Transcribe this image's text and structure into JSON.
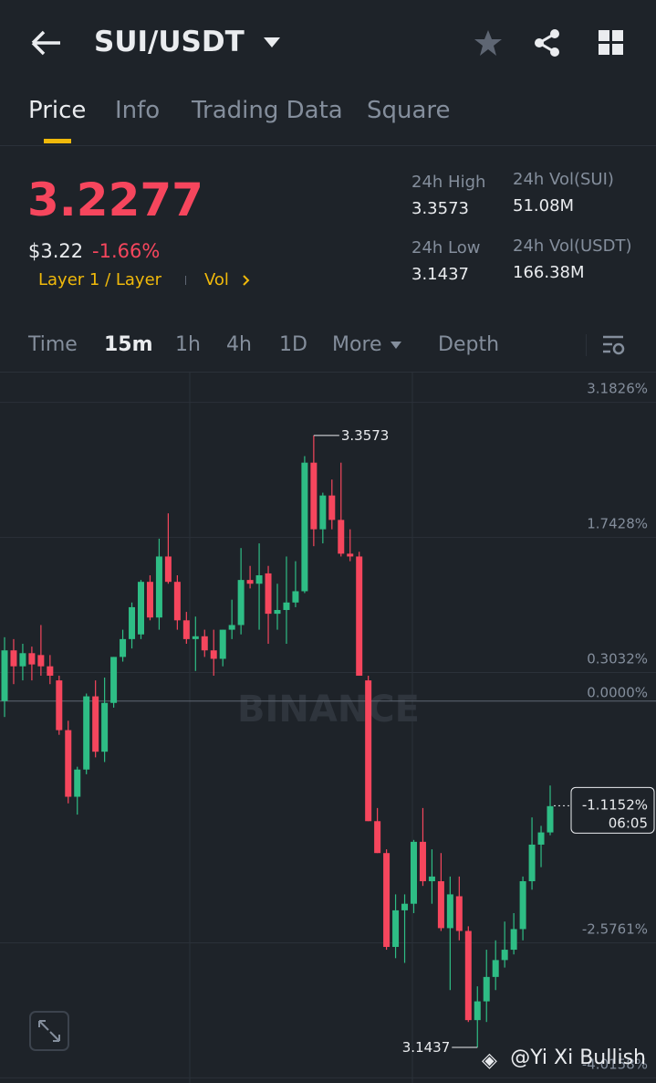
{
  "header": {
    "title": "SUI/USDT"
  },
  "tabs": [
    "Price",
    "Info",
    "Trading Data",
    "Square"
  ],
  "ticker": {
    "price": "3.2277",
    "usd": "$3.22",
    "change": "-1.66%",
    "tags": [
      "Layer 1 / Layer",
      "Vol"
    ],
    "stats": [
      {
        "label": "24h High",
        "value": "3.3573"
      },
      {
        "label": "24h Vol(SUI)",
        "value": "51.08M"
      },
      {
        "label": "24h Low",
        "value": "3.1437"
      },
      {
        "label": "24h Vol(USDT)",
        "value": "166.38M"
      }
    ]
  },
  "intervals": [
    "Time",
    "15m",
    "1h",
    "4h",
    "1D",
    "More",
    "Depth"
  ],
  "chart_data": {
    "type": "candlestick",
    "up_color": "#2ebd85",
    "down_color": "#f6465d",
    "ylim": [
      -4.07,
      3.5
    ],
    "yticks": [
      {
        "value": 3.1826,
        "label": "3.1826%"
      },
      {
        "value": 1.7428,
        "label": "1.7428%"
      },
      {
        "value": 0.3032,
        "label": "0.3032%"
      },
      {
        "value": -2.5761,
        "label": "-2.5761%"
      },
      {
        "value": -4.0158,
        "label": "-4.0158%"
      }
    ],
    "zero_line": {
      "value": 0,
      "label": "0.0000%"
    },
    "current": {
      "value": -1.1152,
      "label": "-1.1152%",
      "countdown": "06:05"
    },
    "high_label": "3.3573",
    "low_label": "3.1437",
    "watermark": "BINANCE",
    "open": [
      0,
      0.54,
      0.37,
      0.51,
      0.49,
      0.37,
      0.22,
      -0.31,
      -1.02,
      -0.73,
      0.05,
      -0.54,
      -0.02,
      0.47,
      0.66,
      0.71,
      1.27,
      0.89,
      1.54,
      1.27,
      0.86,
      0.66,
      0.69,
      0.54,
      0.45,
      0.76,
      0.81,
      1.29,
      1.25,
      1.36,
      0.93,
      0.97,
      1.05,
      1.17,
      2.54,
      1.83,
      2.19,
      1.93,
      1.57,
      1.54,
      0.22,
      -1.28,
      -1.62,
      -2.62,
      -2.23,
      -2.16,
      -1.5,
      -1.92,
      -1.92,
      -2.42,
      -2.08,
      -2.45,
      -3.4,
      -3.2,
      -2.94,
      -2.76,
      -2.65,
      -2.43,
      -1.92,
      -1.53,
      -1.4
    ],
    "high": [
      0.68,
      0.66,
      0.61,
      0.58,
      0.81,
      0.49,
      0.27,
      -0.21,
      -0.7,
      0.08,
      0.22,
      0.25,
      0.47,
      0.76,
      1.05,
      1.29,
      1.34,
      1.73,
      2.0,
      1.34,
      0.95,
      0.9,
      0.76,
      0.76,
      0.76,
      1.08,
      1.63,
      1.44,
      1.68,
      1.44,
      1.25,
      1.54,
      1.49,
      2.61,
      2.83,
      2.22,
      2.36,
      2.54,
      1.83,
      1.59,
      0.27,
      -1.14,
      -1.58,
      -2.06,
      -2.06,
      -1.48,
      -1.14,
      -1.58,
      -1.62,
      -1.87,
      -1.87,
      -2.4,
      -3.04,
      -2.65,
      -2.55,
      -2.35,
      -2.26,
      -1.87,
      -1.24,
      -1.33,
      -0.9
    ],
    "low": [
      -0.17,
      0.18,
      0.22,
      0.22,
      0.27,
      0.18,
      -0.36,
      -1.09,
      -1.21,
      -0.78,
      -0.6,
      -0.65,
      -0.07,
      0.42,
      0.56,
      0.66,
      0.86,
      0.76,
      1.25,
      0.76,
      0.61,
      0.32,
      0.47,
      0.27,
      0.37,
      0.66,
      0.71,
      1.2,
      0.76,
      0.61,
      0.76,
      0.61,
      1.0,
      1.15,
      1.65,
      1.68,
      1.83,
      1.54,
      1.49,
      0.27,
      -1.28,
      -1.62,
      -2.65,
      -2.74,
      -2.79,
      -2.26,
      -1.97,
      -2.16,
      -2.45,
      -3.08,
      -2.55,
      -3.42,
      -3.69,
      -3.42,
      -3.08,
      -2.84,
      -2.7,
      -2.55,
      -2.01,
      -1.77,
      -1.43
    ],
    "close": [
      0.54,
      0.37,
      0.51,
      0.39,
      0.37,
      0.27,
      -0.31,
      -1.02,
      -0.73,
      0.05,
      -0.54,
      -0.02,
      0.47,
      0.66,
      1.0,
      1.27,
      0.89,
      1.54,
      1.27,
      0.86,
      0.66,
      0.69,
      0.54,
      0.45,
      0.76,
      0.81,
      1.29,
      1.25,
      1.34,
      0.93,
      0.97,
      1.05,
      1.17,
      2.54,
      1.83,
      2.19,
      1.93,
      1.57,
      1.54,
      0.27,
      -1.28,
      -1.62,
      -2.62,
      -2.23,
      -2.16,
      -1.5,
      -1.92,
      -1.87,
      -2.42,
      -2.06,
      -2.45,
      -3.4,
      -3.2,
      -2.94,
      -2.76,
      -2.65,
      -2.43,
      -1.92,
      -1.53,
      -1.4,
      -1.12
    ]
  },
  "footer": {
    "credit": "@Yi Xi Bullish"
  }
}
